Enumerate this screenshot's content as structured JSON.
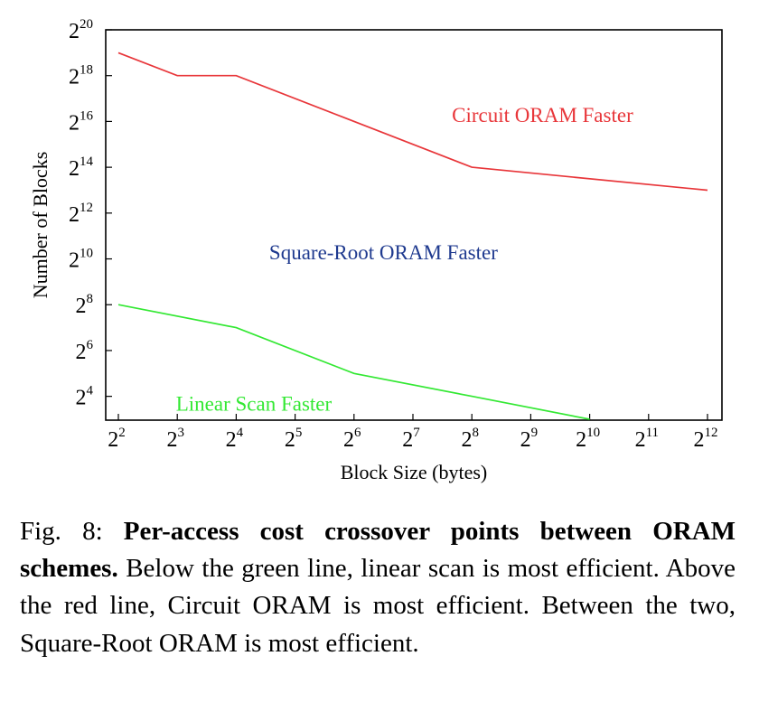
{
  "chart_data": {
    "type": "line",
    "xlabel": "Block Size (bytes)",
    "ylabel": "Number of Blocks",
    "x_ticks": [
      2,
      3,
      4,
      5,
      6,
      7,
      8,
      9,
      10,
      11,
      12
    ],
    "y_ticks": [
      4,
      6,
      8,
      10,
      12,
      14,
      16,
      18,
      20
    ],
    "tick_base": "2",
    "xlim": [
      2,
      12
    ],
    "ylim": [
      3,
      20
    ],
    "scale": "log2",
    "grid": false,
    "series": [
      {
        "color": "#e8363a",
        "x": [
          2,
          3,
          4,
          8,
          12
        ],
        "y": [
          19,
          18,
          18,
          14,
          13
        ]
      },
      {
        "color": "#33e833",
        "x": [
          2,
          4,
          6,
          8,
          10
        ],
        "y": [
          8,
          7,
          5,
          4,
          3
        ]
      }
    ],
    "annotations": [
      {
        "text": "Circuit ORAM Faster",
        "color": "#e8363a",
        "x": 9.2,
        "y": 16.3
      },
      {
        "text": "Square-Root ORAM Faster",
        "color": "#1f3a8f",
        "x": 6.5,
        "y": 10.3
      },
      {
        "text": "Linear Scan Faster",
        "color": "#33e833",
        "x": 4.3,
        "y": 3.7
      }
    ]
  },
  "caption": {
    "label": "Fig. 8:",
    "title": "Per-access cost crossover points between ORAM schemes.",
    "body": "Below the green line, linear scan is most efficient. Above the red line, Circuit ORAM is most efficient. Between the two, Square-Root ORAM is most efficient."
  }
}
